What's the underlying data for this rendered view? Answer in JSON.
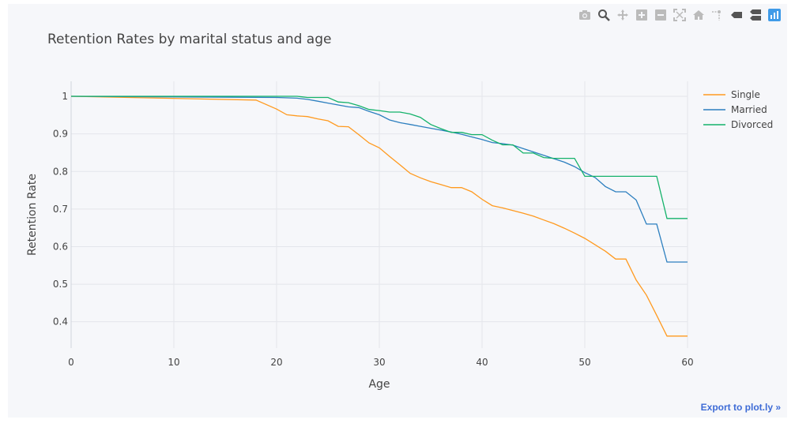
{
  "modebar": {
    "icons": [
      "camera-icon",
      "zoom-icon",
      "pan-icon",
      "zoom-in-icon",
      "zoom-out-icon",
      "autoscale-icon",
      "reset-axes-icon",
      "spike-lines-icon",
      "hover-closest-icon",
      "hover-compare-icon",
      "plotly-logo-icon"
    ]
  },
  "export_label": "Export to plot.ly »",
  "colors": {
    "single": "#ff9a1f",
    "married": "#2c7fbf",
    "divorced": "#14b26a",
    "link": "#3d6bd6"
  },
  "chart_data": {
    "type": "line",
    "title": "Retention Rates by marital status and age",
    "xlabel": "Age",
    "ylabel": "Retention Rate",
    "xlim": [
      0,
      60
    ],
    "ylim": [
      0.33,
      1.04
    ],
    "xticks": [
      0,
      10,
      20,
      30,
      40,
      50,
      60
    ],
    "yticks": [
      0.4,
      0.5,
      0.6,
      0.7,
      0.8,
      0.9,
      1
    ],
    "grid": true,
    "legend": "top-right",
    "series": [
      {
        "name": "Single",
        "color": "#ff9a1f",
        "x": [
          0,
          18,
          20,
          21,
          22,
          23,
          24,
          25,
          26,
          27,
          28,
          29,
          30,
          31,
          32,
          33,
          34,
          35,
          36,
          37,
          38,
          39,
          40,
          41,
          42,
          43,
          44,
          45,
          46,
          47,
          48,
          49,
          50,
          51,
          52,
          53,
          54,
          55,
          56,
          57,
          58,
          59,
          60
        ],
        "y": [
          1.0,
          0.99,
          0.966,
          0.951,
          0.948,
          0.946,
          0.94,
          0.935,
          0.92,
          0.919,
          0.898,
          0.876,
          0.863,
          0.84,
          0.818,
          0.795,
          0.783,
          0.773,
          0.765,
          0.757,
          0.757,
          0.746,
          0.726,
          0.709,
          0.703,
          0.696,
          0.689,
          0.681,
          0.671,
          0.661,
          0.649,
          0.636,
          0.622,
          0.605,
          0.588,
          0.567,
          0.567,
          0.511,
          0.471,
          0.417,
          0.362,
          0.362,
          0.362
        ]
      },
      {
        "name": "Married",
        "color": "#2c7fbf",
        "x": [
          0,
          20,
          22,
          23,
          24,
          25,
          26,
          27,
          28,
          29,
          30,
          31,
          32,
          33,
          34,
          35,
          36,
          37,
          38,
          39,
          40,
          41,
          42,
          43,
          44,
          45,
          46,
          47,
          48,
          49,
          50,
          51,
          52,
          53,
          54,
          55,
          56,
          57,
          58,
          59,
          60
        ],
        "y": [
          1.0,
          0.997,
          0.995,
          0.992,
          0.987,
          0.982,
          0.977,
          0.972,
          0.97,
          0.96,
          0.951,
          0.937,
          0.93,
          0.925,
          0.92,
          0.915,
          0.91,
          0.905,
          0.899,
          0.892,
          0.885,
          0.877,
          0.874,
          0.87,
          0.861,
          0.852,
          0.843,
          0.834,
          0.825,
          0.813,
          0.797,
          0.784,
          0.76,
          0.746,
          0.746,
          0.724,
          0.66,
          0.66,
          0.559,
          0.559,
          0.559
        ]
      },
      {
        "name": "Divorced",
        "color": "#14b26a",
        "x": [
          0,
          22,
          23,
          24,
          25,
          26,
          27,
          28,
          29,
          30,
          31,
          32,
          33,
          34,
          35,
          36,
          37,
          38,
          39,
          40,
          41,
          42,
          43,
          44,
          45,
          46,
          47,
          48,
          49,
          50,
          51,
          52,
          53,
          54,
          55,
          56,
          57,
          58,
          59,
          60
        ],
        "y": [
          1.0,
          1.0,
          0.997,
          0.997,
          0.997,
          0.985,
          0.983,
          0.975,
          0.965,
          0.962,
          0.958,
          0.958,
          0.953,
          0.944,
          0.925,
          0.914,
          0.904,
          0.904,
          0.898,
          0.898,
          0.883,
          0.871,
          0.871,
          0.849,
          0.849,
          0.837,
          0.835,
          0.835,
          0.835,
          0.787,
          0.787,
          0.787,
          0.787,
          0.787,
          0.787,
          0.787,
          0.787,
          0.675,
          0.675,
          0.675
        ]
      }
    ]
  }
}
